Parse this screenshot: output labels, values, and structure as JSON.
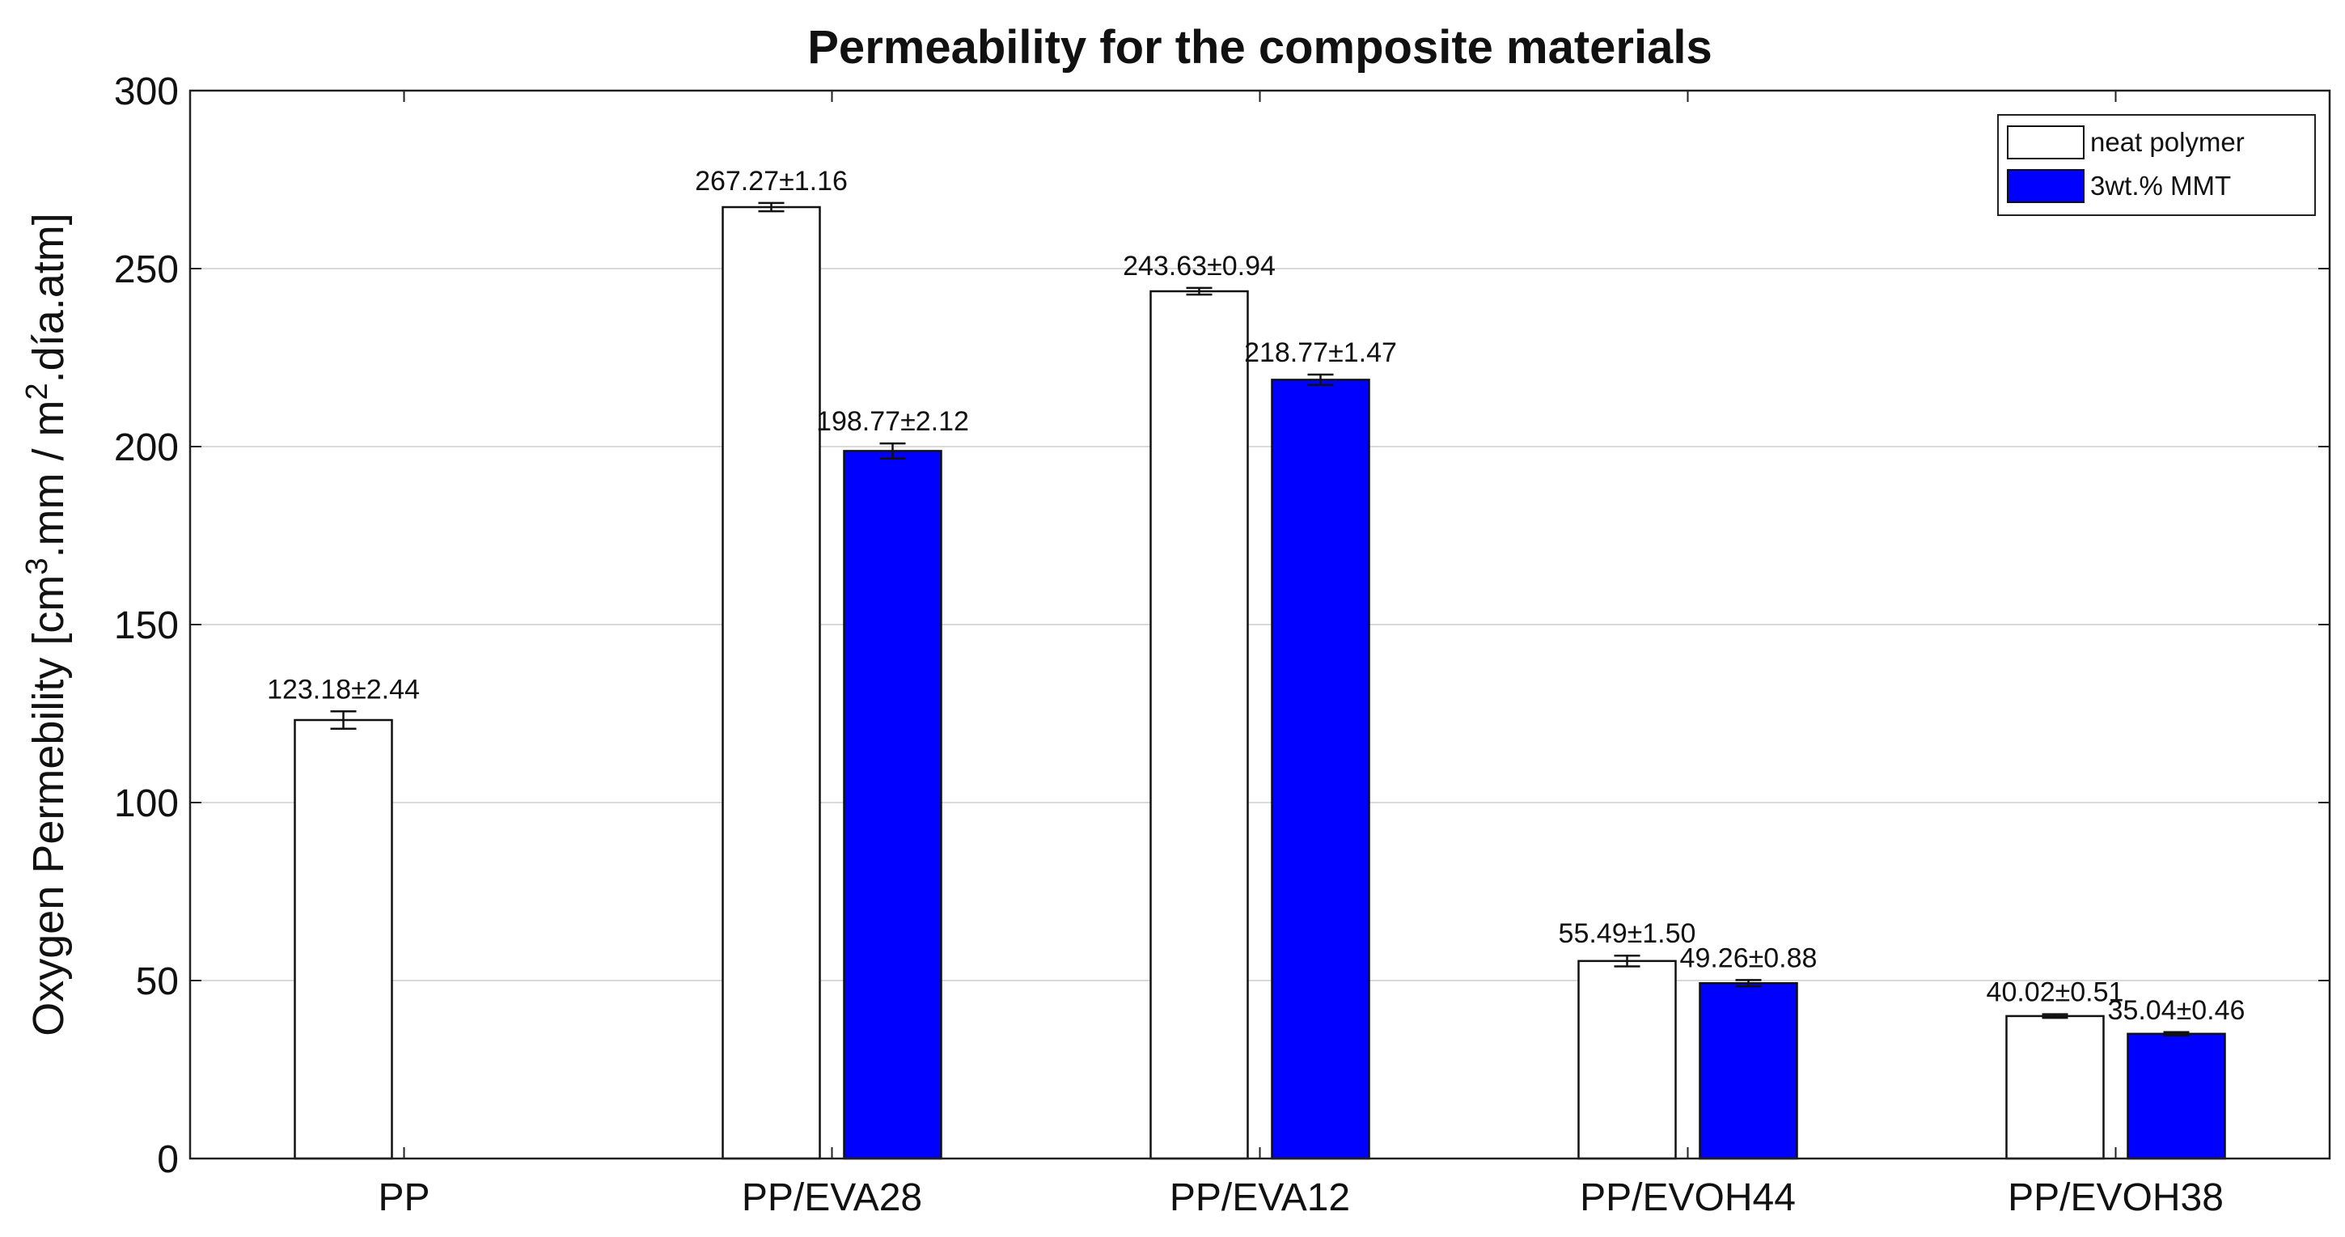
{
  "chart_data": {
    "type": "bar",
    "title": "Permeability for the composite materials",
    "xlabel": "",
    "ylabel_parts": [
      "Oxygen Permebility [cm",
      "3",
      ".mm / m",
      "2",
      ".día.atm]"
    ],
    "ylim": [
      0,
      300
    ],
    "yticks": [
      0,
      50,
      100,
      150,
      200,
      250,
      300
    ],
    "grid": true,
    "legend_position": "top-right",
    "categories": [
      "PP",
      "PP/EVA28",
      "PP/EVA12",
      "PP/EVOH44",
      "PP/EVOH38"
    ],
    "series": [
      {
        "name": "neat polymer",
        "color": "#ffffff",
        "values": [
          123.18,
          267.27,
          243.63,
          55.49,
          40.02
        ],
        "errors": [
          2.44,
          1.16,
          0.94,
          1.5,
          0.51
        ],
        "labels": [
          "123.18±2.44",
          "267.27±1.16",
          "243.63±0.94",
          "55.49±1.50",
          "40.02±0.51"
        ]
      },
      {
        "name": "3wt.% MMT",
        "color": "#0000ff",
        "values": [
          null,
          198.77,
          218.77,
          49.26,
          35.04
        ],
        "errors": [
          null,
          2.12,
          1.47,
          0.88,
          0.46
        ],
        "labels": [
          null,
          "198.77±2.12",
          "218.77±1.47",
          "49.26±0.88",
          "35.04±0.46"
        ]
      }
    ]
  }
}
